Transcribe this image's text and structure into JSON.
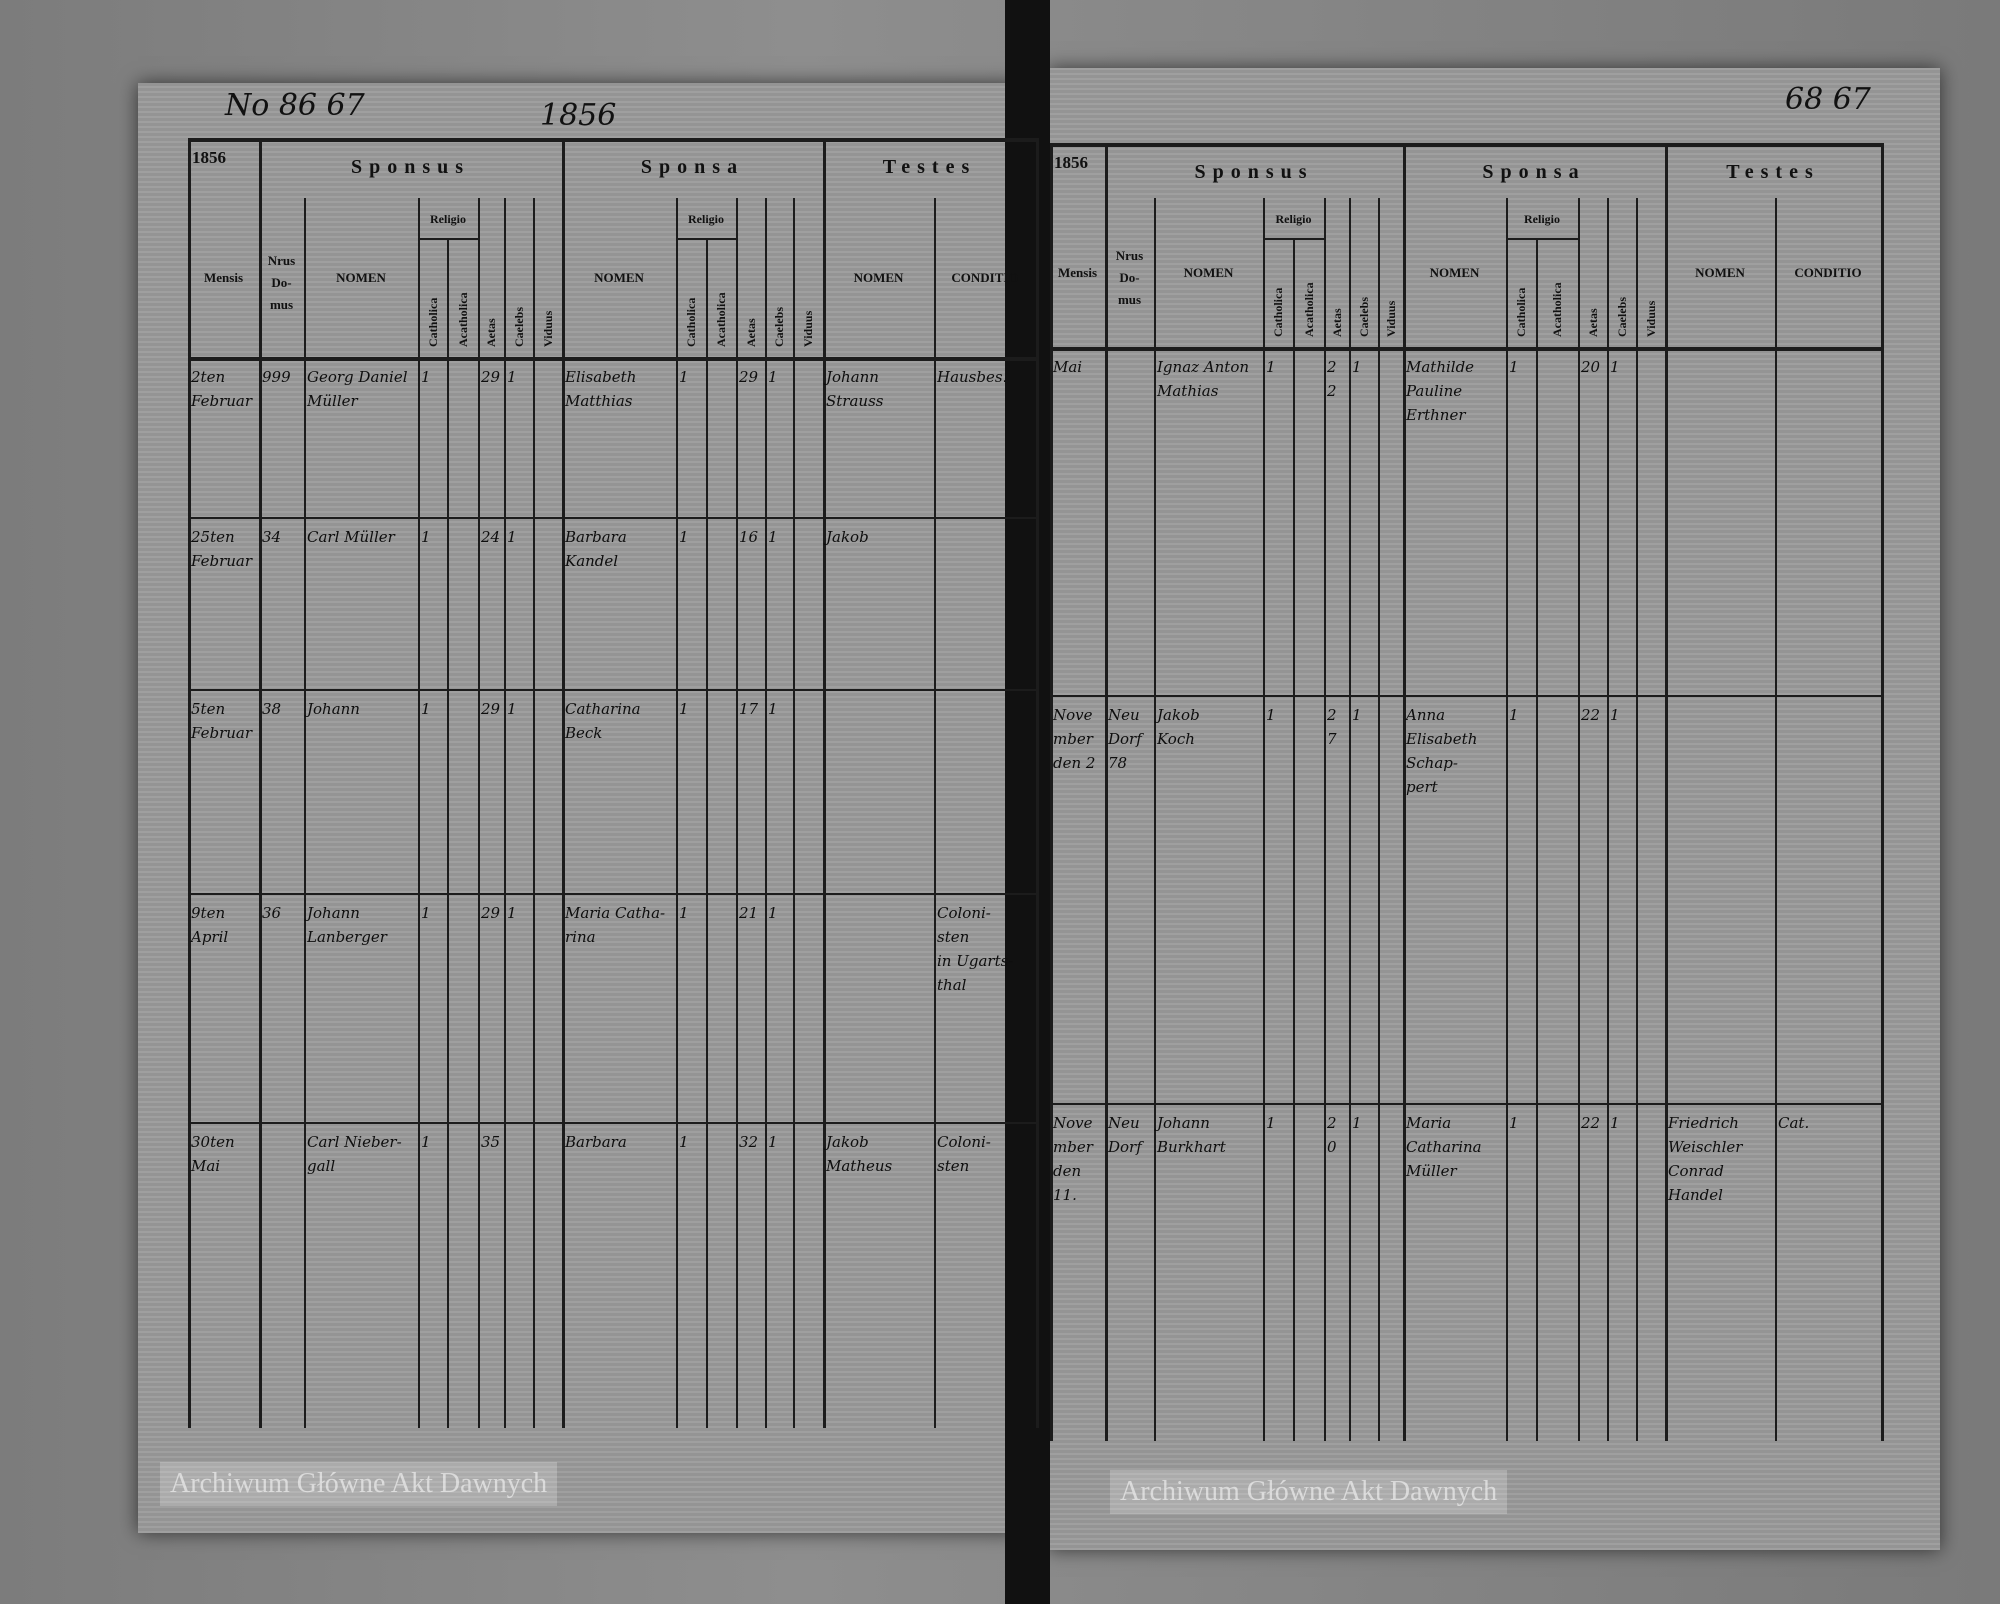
{
  "left_page": {
    "folio": "No 86 67",
    "year": "1856",
    "year_corner": "1856",
    "sections": {
      "sponsus": "Sponsus",
      "sponsa": "Sponsa",
      "testes": "Testes"
    },
    "columns": {
      "mensis": "Mensis",
      "nrus_domus": "Nrus Do- mus",
      "nomen": "NOMEN",
      "religio": "Religio",
      "religio_a": "Catholica",
      "religio_b": "Acatholica",
      "aetas": "Aetas",
      "caelebs": "Caelebs",
      "viduus": "Viduus",
      "conditio": "CONDITIO"
    },
    "entries": [
      {
        "mensis": "2ten\nFebruar",
        "domus": "999",
        "sponsus": "Georg Daniel\nMüller",
        "sponsus_religio": "1",
        "sponsus_aetas": "29",
        "sponsus_caelebs": "1",
        "sponsa": "Elisabeth\nMatthias",
        "sponsa_religio": "1",
        "sponsa_aetas": "29",
        "sponsa_caelebs": "1",
        "testes": "Johann\nStrauss",
        "conditio": "Hausbes."
      },
      {
        "mensis": "25ten\nFebruar",
        "domus": "34",
        "sponsus": "Carl Müller",
        "sponsus_religio": "1",
        "sponsus_aetas": "24",
        "sponsus_caelebs": "1",
        "sponsa": "Barbara\nKandel",
        "sponsa_religio": "1",
        "sponsa_aetas": "16",
        "sponsa_caelebs": "1",
        "testes": "Jakob",
        "conditio": ""
      },
      {
        "mensis": "5ten\nFebruar",
        "domus": "38",
        "sponsus": "Johann",
        "sponsus_religio": "1",
        "sponsus_aetas": "29",
        "sponsus_caelebs": "1",
        "sponsa": "Catharina\nBeck",
        "sponsa_religio": "1",
        "sponsa_aetas": "17",
        "sponsa_caelebs": "1",
        "testes": "",
        "conditio": ""
      },
      {
        "mensis": "9ten\nApril",
        "domus": "36",
        "sponsus": "Johann\nLanberger",
        "sponsus_religio": "1",
        "sponsus_aetas": "29",
        "sponsus_caelebs": "1",
        "sponsa": "Maria Catha-\nrina",
        "sponsa_religio": "1",
        "sponsa_aetas": "21",
        "sponsa_caelebs": "1",
        "testes": "",
        "conditio": "Coloni-\nsten\nin Ugarts-\nthal"
      },
      {
        "mensis": "30ten\nMai",
        "domus": "",
        "sponsus": "Carl Nieber-\ngall",
        "sponsus_religio": "1",
        "sponsus_aetas": "35",
        "sponsus_caelebs": "",
        "sponsa": "Barbara",
        "sponsa_religio": "1",
        "sponsa_aetas": "32",
        "sponsa_caelebs": "1",
        "testes": "Jakob\nMatheus",
        "conditio": "Coloni-\nsten"
      }
    ]
  },
  "right_page": {
    "folio": "68 67",
    "year_corner": "1856",
    "sections": {
      "sponsus": "Sponsus",
      "sponsa": "Sponsa",
      "testes": "Testes"
    },
    "columns": {
      "mensis": "Mensis",
      "nrus_domus": "Nrus Do- mus",
      "nomen": "NOMEN",
      "religio": "Religio",
      "religio_a": "Catholica",
      "religio_b": "Acatholica",
      "aetas": "Aetas",
      "caelebs": "Caelebs",
      "viduus": "Viduus",
      "conditio": "CONDITIO"
    },
    "entries": [
      {
        "mensis": "Mai",
        "domus": "",
        "sponsus": "Ignaz Anton\nMathias",
        "sponsus_religio": "1",
        "sponsus_aetas": "22",
        "sponsus_caelebs": "1",
        "sponsa": "Mathilde\nPauline\nErthner",
        "sponsa_religio": "1",
        "sponsa_aetas": "20",
        "sponsa_caelebs": "1",
        "testes": "",
        "conditio": ""
      },
      {
        "mensis": "November\nden 2",
        "domus": "Neu\nDorf\n78",
        "sponsus": "Jakob\nKoch",
        "sponsus_religio": "1",
        "sponsus_aetas": "27",
        "sponsus_caelebs": "1",
        "sponsa": "Anna\nElisabeth\nSchap-\npert",
        "sponsa_religio": "1",
        "sponsa_aetas": "22",
        "sponsa_caelebs": "1",
        "testes": "",
        "conditio": ""
      },
      {
        "mensis": "November\nden\n11.",
        "domus": "Neu\nDorf",
        "sponsus": "Johann\nBurkhart",
        "sponsus_religio": "1",
        "sponsus_aetas": "20",
        "sponsus_caelebs": "1",
        "sponsa": "Maria\nCatharina\nMüller",
        "sponsa_religio": "1",
        "sponsa_aetas": "22",
        "sponsa_caelebs": "1",
        "testes": "Friedrich\nWeischler\nConrad\nHandel",
        "conditio": "Cat."
      }
    ]
  },
  "watermark": "Archiwum Główne Akt Dawnych"
}
